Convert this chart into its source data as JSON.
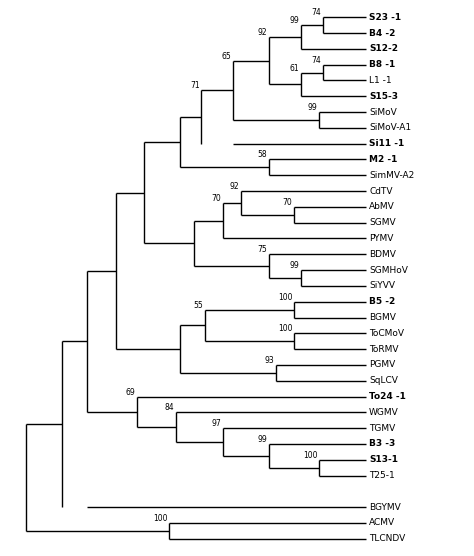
{
  "background_color": "#ffffff",
  "line_color": "#000000",
  "line_width": 1.0,
  "taxa": [
    {
      "name": "S23 -1",
      "bold": true,
      "y": 1
    },
    {
      "name": "B4 -2",
      "bold": true,
      "y": 2
    },
    {
      "name": "S12-2",
      "bold": true,
      "y": 3
    },
    {
      "name": "B8 -1",
      "bold": true,
      "y": 4
    },
    {
      "name": "L1 -1",
      "bold": false,
      "y": 5
    },
    {
      "name": "S15-3",
      "bold": true,
      "y": 6
    },
    {
      "name": "SiMoV",
      "bold": false,
      "y": 7
    },
    {
      "name": "SiMoV-A1",
      "bold": false,
      "y": 8
    },
    {
      "name": "Si11 -1",
      "bold": true,
      "y": 9
    },
    {
      "name": "M2 -1",
      "bold": true,
      "y": 10
    },
    {
      "name": "SimMV-A2",
      "bold": false,
      "y": 11
    },
    {
      "name": "CdTV",
      "bold": false,
      "y": 12
    },
    {
      "name": "AbMV",
      "bold": false,
      "y": 13
    },
    {
      "name": "SGMV",
      "bold": false,
      "y": 14
    },
    {
      "name": "PYMV",
      "bold": false,
      "y": 15
    },
    {
      "name": "BDMV",
      "bold": false,
      "y": 16
    },
    {
      "name": "SGMHoV",
      "bold": false,
      "y": 17
    },
    {
      "name": "SiYVV",
      "bold": false,
      "y": 18
    },
    {
      "name": "B5 -2",
      "bold": true,
      "y": 19
    },
    {
      "name": "BGMV",
      "bold": false,
      "y": 20
    },
    {
      "name": "ToCMoV",
      "bold": false,
      "y": 21
    },
    {
      "name": "ToRMV",
      "bold": false,
      "y": 22
    },
    {
      "name": "PGMV",
      "bold": false,
      "y": 23
    },
    {
      "name": "SqLCV",
      "bold": false,
      "y": 24
    },
    {
      "name": "To24 -1",
      "bold": true,
      "y": 25
    },
    {
      "name": "WGMV",
      "bold": false,
      "y": 26
    },
    {
      "name": "TGMV",
      "bold": false,
      "y": 27
    },
    {
      "name": "B3 -3",
      "bold": true,
      "y": 28
    },
    {
      "name": "S13-1",
      "bold": true,
      "y": 29
    },
    {
      "name": "T25-1",
      "bold": false,
      "y": 30
    },
    {
      "name": "BGYMV",
      "bold": false,
      "y": 32
    },
    {
      "name": "ACMV",
      "bold": false,
      "y": 33
    },
    {
      "name": "TLCNDV",
      "bold": false,
      "y": 34
    }
  ]
}
